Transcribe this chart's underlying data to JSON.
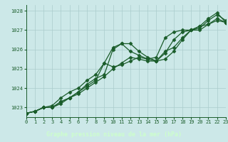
{
  "title": "Graphe pression niveau de la mer (hPa)",
  "background_color": "#cce8e8",
  "grid_color": "#aacccc",
  "line_color": "#1a5c2a",
  "bottom_bar_color": "#1a5c2a",
  "bottom_bar_text_color": "#ccffcc",
  "xlim": [
    0,
    23
  ],
  "ylim": [
    1022.5,
    1028.3
  ],
  "yticks": [
    1023,
    1024,
    1025,
    1026,
    1027,
    1028
  ],
  "xticks": [
    0,
    1,
    2,
    3,
    4,
    5,
    6,
    7,
    8,
    9,
    10,
    11,
    12,
    13,
    14,
    15,
    16,
    17,
    18,
    19,
    20,
    21,
    22,
    23
  ],
  "series": [
    [
      1022.7,
      1022.8,
      1023.0,
      1023.0,
      1023.3,
      1023.5,
      1023.8,
      1024.1,
      1024.4,
      1025.3,
      1026.1,
      1026.3,
      1026.3,
      1025.9,
      1025.6,
      1025.4,
      1025.8,
      1026.5,
      1026.9,
      1027.0,
      1027.1,
      1027.5,
      1027.8,
      1027.5
    ],
    [
      1022.7,
      1022.8,
      1023.0,
      1023.0,
      1023.2,
      1023.5,
      1023.7,
      1024.0,
      1024.3,
      1024.6,
      1025.0,
      1025.3,
      1025.6,
      1025.5,
      1025.4,
      1025.4,
      1025.9,
      1026.1,
      1026.6,
      1027.0,
      1027.0,
      1027.3,
      1027.5,
      1027.4
    ],
    [
      1022.7,
      1022.8,
      1023.0,
      1023.0,
      1023.3,
      1023.5,
      1023.8,
      1024.2,
      1024.5,
      1024.7,
      1026.0,
      1026.3,
      1025.9,
      1025.7,
      1025.5,
      1025.6,
      1026.6,
      1026.9,
      1027.0,
      1027.0,
      1027.2,
      1027.6,
      1027.9,
      1027.4
    ],
    [
      1022.7,
      1022.8,
      1023.0,
      1023.1,
      1023.5,
      1023.8,
      1024.0,
      1024.4,
      1024.7,
      1025.3,
      1025.1,
      1025.2,
      1025.4,
      1025.6,
      1025.5,
      1025.4,
      1025.5,
      1025.9,
      1026.5,
      1027.0,
      1027.2,
      1027.3,
      1027.6,
      1027.4
    ]
  ],
  "marker": "D",
  "markersize": 2.5,
  "linewidth": 0.9,
  "tick_fontsize": 5,
  "label_fontsize": 6
}
